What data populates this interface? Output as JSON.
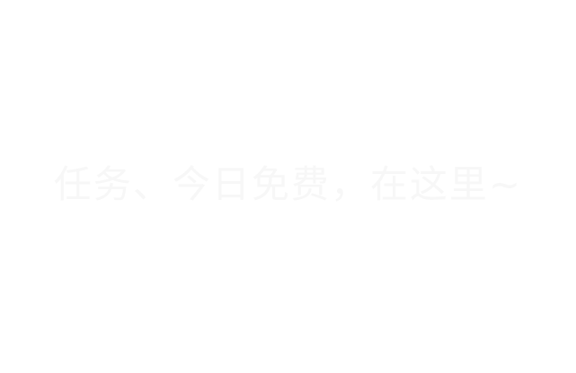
{
  "tip": {
    "text": "任务、今日免费，在这里~"
  },
  "colors": {
    "background": "#ffffff",
    "tip_text": "#f7f7f7"
  }
}
